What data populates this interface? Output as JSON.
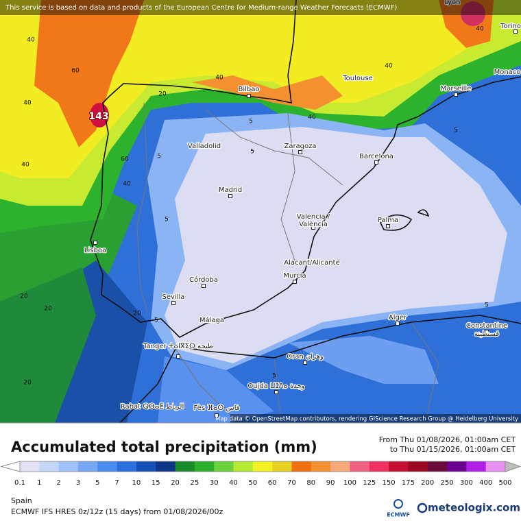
{
  "notice": "This service is based on data and products of the European Centre for Medium-range Weather Forecasts (ECMWF)",
  "cities": [
    "Lyon",
    "Torino",
    "Monaco",
    "Toulouse",
    "Marseille",
    "Bilbao",
    "Valladolid",
    "Zaragoza",
    "Barcelona",
    "Madrid",
    "Valencia /",
    "València",
    "Palma",
    "Lisboa",
    "Alacant/Alicante",
    "Murcia",
    "Córdoba",
    "Sevilla",
    "Málaga",
    "Alger",
    "Constantine",
    "قسنطينة",
    "Tanger ⵜⴰⵏⴳⵉⵔ ﻃﻨﺠﺔ",
    "Oran وهران",
    "Oujda ⵡⵊⴷⴰ وجدة",
    "Rabat ⵕⴱⴰⵟ الرباط",
    "Fès ⴼⴰⵙ فاس"
  ],
  "contour_labels": [
    40,
    60,
    40,
    40,
    40,
    20,
    40,
    40,
    40,
    5,
    5,
    5,
    5,
    60,
    40,
    20,
    20,
    20,
    5,
    5,
    5,
    5,
    20
  ],
  "max_label": 143,
  "attribution": "Map data © OpenStreetMap contributors, rendering GIScience Research Group @ Heidelberg University",
  "title": "Accumulated total precipitation (mm)",
  "period": {
    "from": "From Thu 01/08/2026, 01:00am CET",
    "to": "to Thu 01/15/2026, 01:00am CET"
  },
  "legend": {
    "values": [
      0.1,
      1,
      2,
      3,
      5,
      7,
      10,
      15,
      20,
      25,
      30,
      40,
      50,
      60,
      70,
      80,
      90,
      100,
      125,
      150,
      175,
      200,
      250,
      300,
      400,
      500
    ],
    "colors": [
      "#e2e2f4",
      "#c2d6f8",
      "#9ec0f8",
      "#76a6f4",
      "#4a8cf0",
      "#2a6ee0",
      "#1450b8",
      "#0c3488",
      "#1a8a2a",
      "#2cb02c",
      "#6cd23c",
      "#b4ea34",
      "#f2f220",
      "#e6d020",
      "#f07010",
      "#f59030",
      "#f5a878",
      "#f06080",
      "#f03060",
      "#c81030",
      "#9c0820",
      "#6a0a3a",
      "#6a0090",
      "#b020e8",
      "#e890f0",
      "#f6e0fa"
    ]
  },
  "region": "Spain",
  "model": "ECMWF IFS HRES 0z/12z (15 days) from 01/08/2026/00z",
  "logos": [
    "ECMWF",
    "meteologix.com"
  ]
}
